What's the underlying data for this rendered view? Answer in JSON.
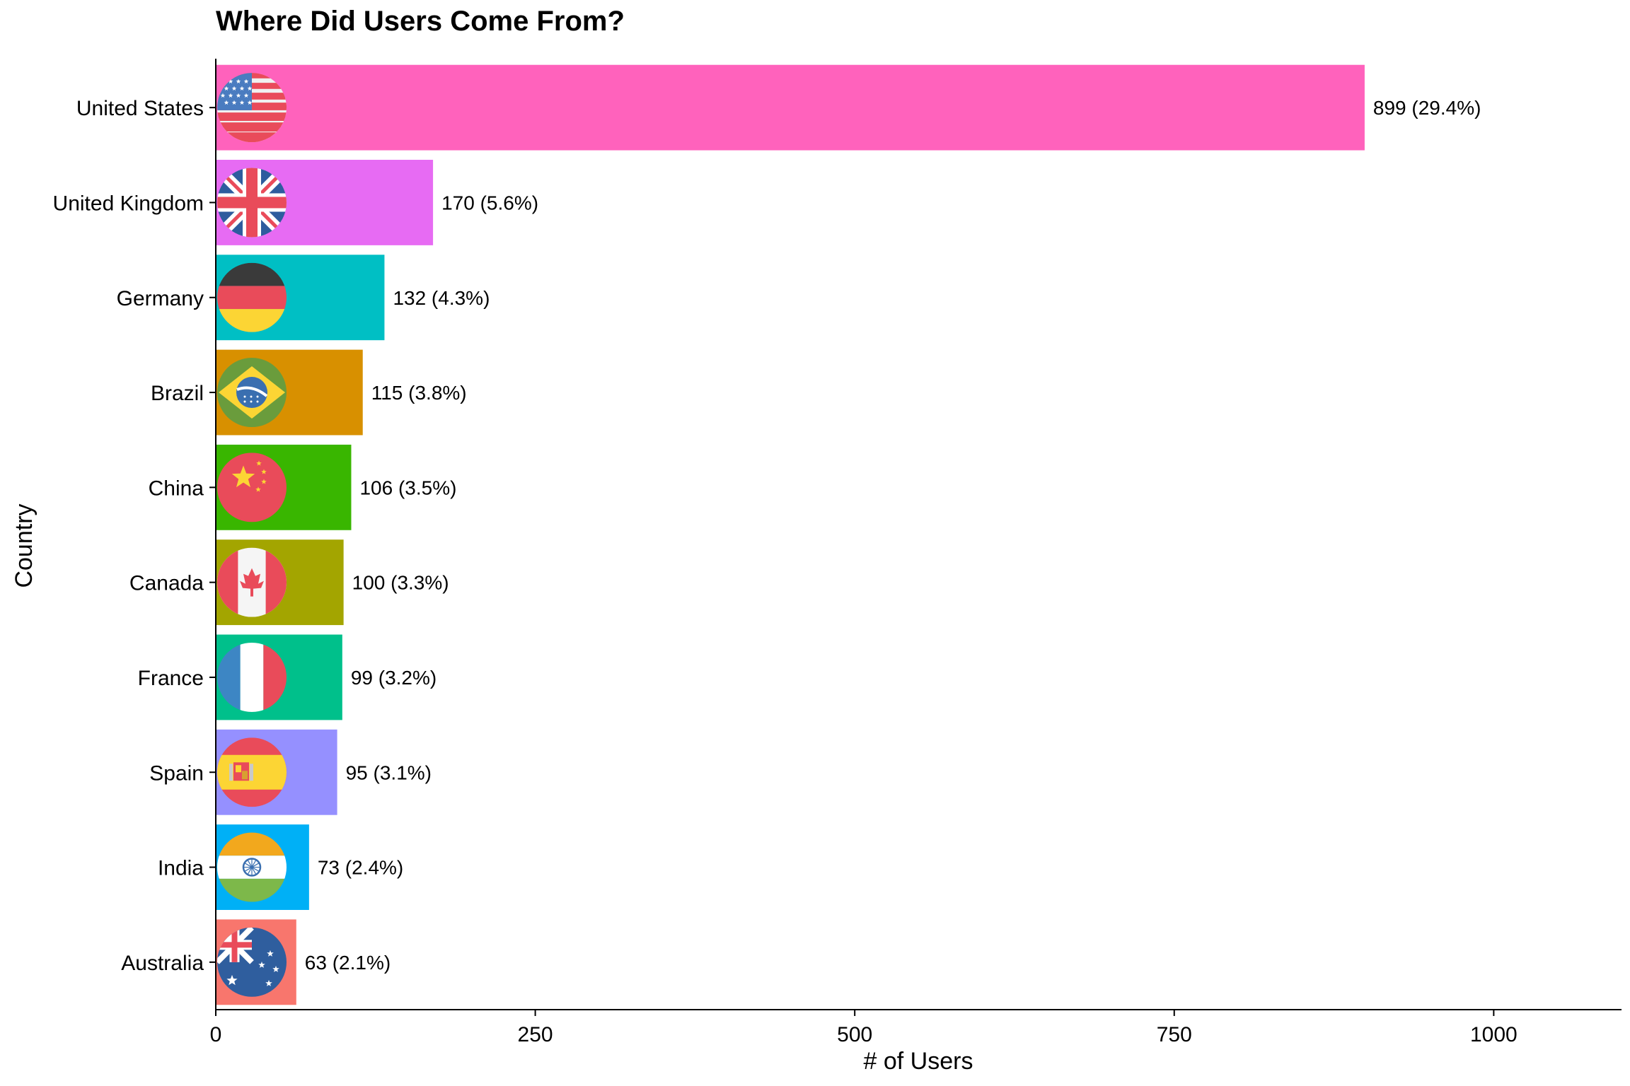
{
  "chart_data": {
    "type": "bar",
    "orientation": "horizontal",
    "title": "Where Did Users Come From?",
    "xlabel": "# of Users",
    "ylabel": "Country",
    "xlim": [
      0,
      1100
    ],
    "xticks": [
      0,
      250,
      500,
      750,
      1000
    ],
    "grid": false,
    "legend": "none",
    "categories": [
      "United States",
      "United Kingdom",
      "Germany",
      "Brazil",
      "China",
      "Canada",
      "France",
      "Spain",
      "India",
      "Australia"
    ],
    "values": [
      899,
      170,
      132,
      115,
      106,
      100,
      99,
      95,
      73,
      63
    ],
    "labels": [
      "899 (29.4%)",
      "170 (5.6%)",
      "132 (4.3%)",
      "115 (3.8%)",
      "106 (3.5%)",
      "100 (3.3%)",
      "99 (3.2%)",
      "95 (3.1%)",
      "73 (2.4%)",
      "63 (2.1%)"
    ],
    "colors": [
      "#FF62BC",
      "#E76BF3",
      "#00BFC4",
      "#D89000",
      "#39B600",
      "#A3A500",
      "#00C08B",
      "#9590FF",
      "#00B0F6",
      "#F8766D"
    ],
    "flags": [
      "us-flag-icon",
      "uk-flag-icon",
      "germany-flag-icon",
      "brazil-flag-icon",
      "china-flag-icon",
      "canada-flag-icon",
      "france-flag-icon",
      "spain-flag-icon",
      "india-flag-icon",
      "australia-flag-icon"
    ]
  }
}
